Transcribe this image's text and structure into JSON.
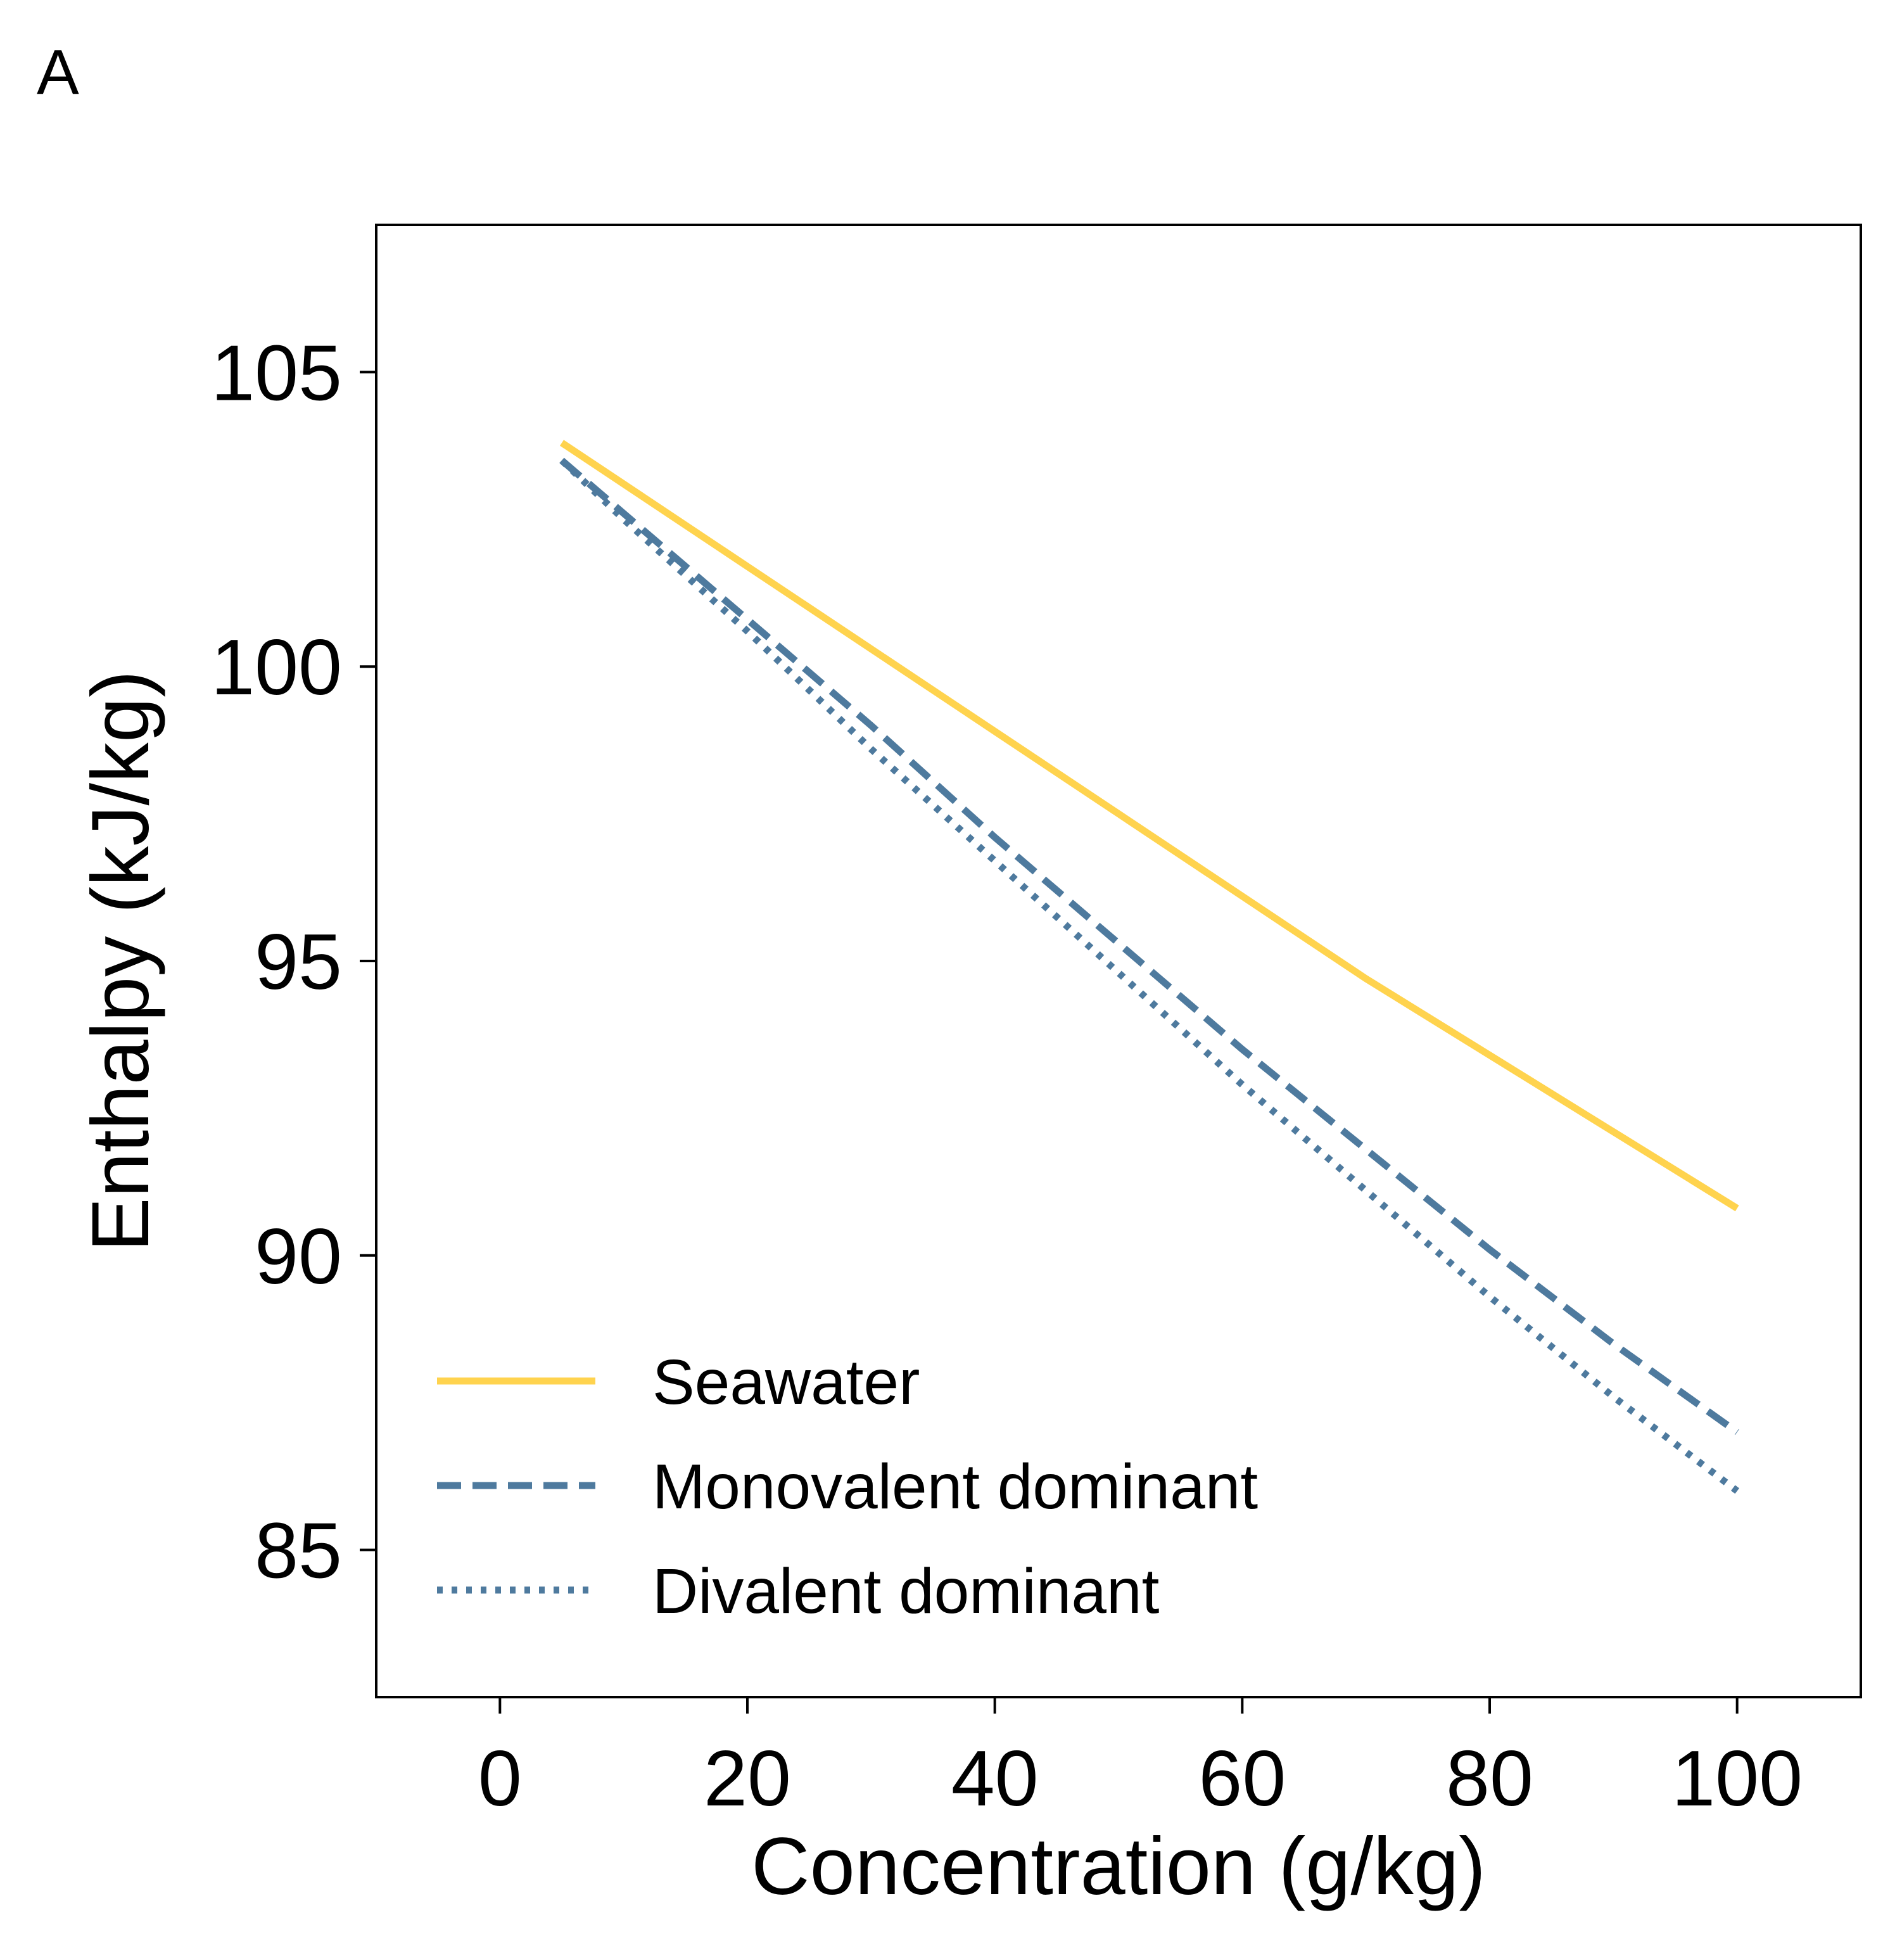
{
  "panel_label": "A",
  "chart_data": {
    "type": "line",
    "title": "",
    "xlabel": "Concentration (g/kg)",
    "ylabel": "Enthalpy (kJ/kg)",
    "xlim": [
      -10,
      110
    ],
    "ylim": [
      82.5,
      107.5
    ],
    "xticks": [
      0,
      20,
      40,
      60,
      80,
      100
    ],
    "yticks": [
      85,
      90,
      95,
      100,
      105
    ],
    "xtick_labels": [
      "0",
      "20",
      "40",
      "60",
      "80",
      "100"
    ],
    "ytick_labels": [
      "85",
      "90",
      "95",
      "100",
      "105"
    ],
    "grid": false,
    "legend_position": "lower-left",
    "series": [
      {
        "name": "Seawater",
        "color": "#FFD34E",
        "linestyle": "solid",
        "x": [
          5,
          10,
          20,
          30,
          40,
          50,
          60,
          70,
          80,
          90,
          100
        ],
        "y": [
          103.8,
          103.1,
          101.7,
          100.3,
          98.9,
          97.5,
          96.1,
          94.7,
          93.4,
          92.1,
          90.8
        ]
      },
      {
        "name": "Monovalent dominant",
        "color": "#4E7A9E",
        "linestyle": "dashed",
        "x": [
          5,
          10,
          20,
          30,
          40,
          50,
          60,
          70,
          80,
          90,
          100
        ],
        "y": [
          103.5,
          102.6,
          100.8,
          99.0,
          97.1,
          95.3,
          93.5,
          91.8,
          90.1,
          88.5,
          87.0
        ]
      },
      {
        "name": "Divalent dominant",
        "color": "#4E7A9E",
        "linestyle": "dotted",
        "x": [
          5,
          10,
          20,
          30,
          40,
          50,
          60,
          70,
          80,
          90,
          100
        ],
        "y": [
          103.5,
          102.5,
          100.6,
          98.6,
          96.7,
          94.8,
          92.9,
          91.1,
          89.3,
          87.6,
          86.0
        ]
      }
    ]
  }
}
